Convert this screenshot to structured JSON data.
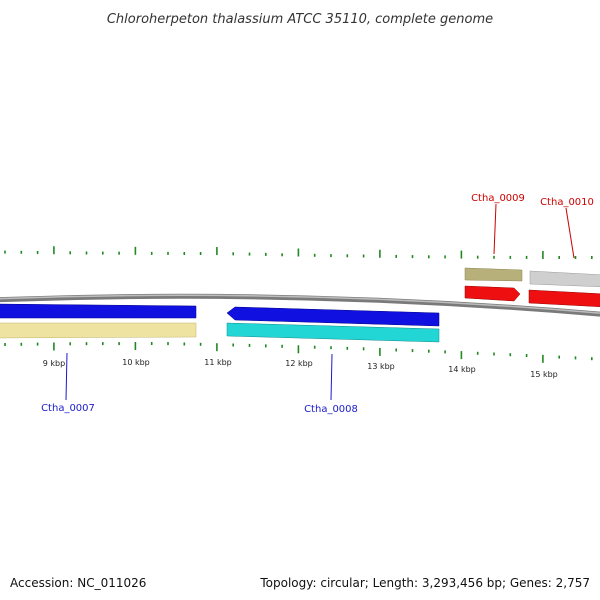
{
  "title": "Chloroherpeton thalassium ATCC 35110, complete genome",
  "footer": {
    "accession": "Accession: NC_011026",
    "summary": "Topology: circular; Length: 3,293,456 bp; Genes: 2,757"
  },
  "kbp_labels": [
    "9 kbp",
    "10 kbp",
    "11 kbp",
    "12 kbp",
    "13 kbp",
    "14 kbp",
    "15 kbp"
  ],
  "genes": [
    {
      "id": "Ctha_0007",
      "strand": "reverse",
      "color": "#1f3fd8"
    },
    {
      "id": "Ctha_0008",
      "strand": "reverse",
      "color": "#1f3fd8"
    },
    {
      "id": "Ctha_0009",
      "strand": "forward",
      "color": "#dd1111"
    },
    {
      "id": "Ctha_0010",
      "strand": "forward",
      "color": "#dd1111"
    }
  ],
  "colors": {
    "backbone": "#7a7a7a",
    "tick": "#228822",
    "forward_label": "#cc0000",
    "reverse_label": "#1a1acc",
    "cds_blue": "#1010e0",
    "cds_red": "#ee1010",
    "cds_yellow": "#eee3a0",
    "cds_cyan": "#22d6d6",
    "cds_olive": "#b8b07a",
    "cds_grey": "#cfcfcf"
  }
}
